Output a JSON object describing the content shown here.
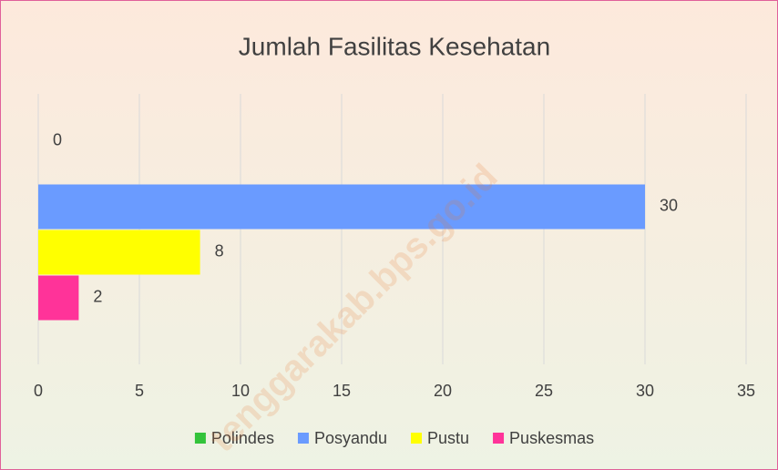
{
  "chart_data": {
    "type": "bar",
    "orientation": "horizontal",
    "title": "Jumlah Fasilitas Kesehatan",
    "categories": [
      null
    ],
    "series": [
      {
        "name": "Polindes",
        "color": "#33c33a",
        "values": [
          0
        ]
      },
      {
        "name": "Posyandu",
        "color": "#6a9bff",
        "values": [
          30
        ]
      },
      {
        "name": "Pustu",
        "color": "#ffff00",
        "values": [
          8
        ]
      },
      {
        "name": "Puskesmas",
        "color": "#ff3399",
        "values": [
          2
        ]
      }
    ],
    "xlim": [
      0,
      35
    ],
    "xticks": [
      0,
      5,
      10,
      15,
      20,
      25,
      30,
      35
    ],
    "grid": true,
    "legend": "bottom",
    "watermark": "tenggarakab.bps.go.id"
  }
}
